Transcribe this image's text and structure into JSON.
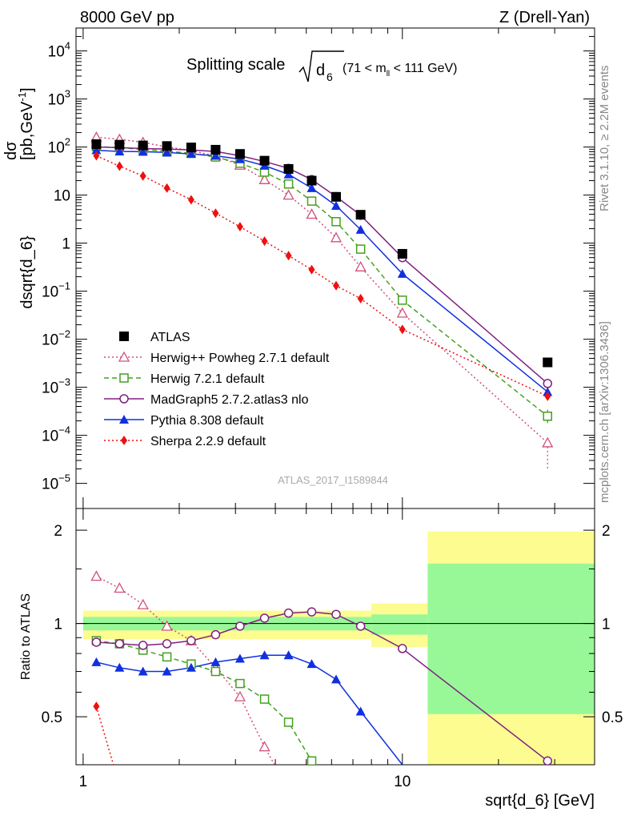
{
  "header": {
    "energy_label": "8000 GeV pp",
    "process_label": "Z (Drell-Yan)"
  },
  "side_labels": {
    "rivet": "Rivet 3.1.10, ≥ 2.2M events",
    "mcplots": "mcplots.cern.ch [arXiv:1306.3436]"
  },
  "analysis_id": "ATLAS_2017_I1589844",
  "chart_data": [
    {
      "type": "line",
      "panel": "main",
      "title": "Splitting scale √d6 (71 < m_ll < 111 GeV)",
      "title_parts": {
        "text": "Splitting scale",
        "sub": "6",
        "symbol": "d",
        "range": "(71 < m",
        "range_sub": "ll",
        "range_end": " < 111 GeV)"
      },
      "xlabel": "sqrt{d_6} [GeV]",
      "ylabel": "dσ/dsqrt{d_6} [pb,GeV⁻¹]",
      "ylabel_parts": {
        "num": "dσ",
        "den": "dsqrt{d_6}",
        "unit": "[pb,GeV",
        "unit_sup": "-1",
        "unit_end": "]"
      },
      "x_scale": "log",
      "y_scale": "log",
      "xlim": [
        0.95,
        40
      ],
      "ylim": [
        3e-06,
        30000
      ],
      "x_ticks": [
        {
          "value": 1,
          "label": "1"
        },
        {
          "value": 10,
          "label": "10"
        }
      ],
      "y_ticks": [
        {
          "value": 10000,
          "base": "10",
          "exp": "4"
        },
        {
          "value": 1000,
          "base": "10",
          "exp": "3"
        },
        {
          "value": 100,
          "base": "10",
          "exp": "2"
        },
        {
          "value": 10,
          "base": "10",
          "exp": ""
        },
        {
          "value": 1,
          "base": "1",
          "exp": ""
        },
        {
          "value": 0.1,
          "base": "10",
          "exp": "−1"
        },
        {
          "value": 0.01,
          "base": "10",
          "exp": "−2"
        },
        {
          "value": 0.001,
          "base": "10",
          "exp": "−3"
        },
        {
          "value": 0.0001,
          "base": "10",
          "exp": "−4"
        },
        {
          "value": 1e-05,
          "base": "10",
          "exp": "−5"
        }
      ],
      "legend_position": "bottom-left",
      "series": [
        {
          "name": "ATLAS",
          "style": "data",
          "color": "#000000",
          "marker": "square-filled",
          "x": [
            1.1,
            1.3,
            1.54,
            1.83,
            2.18,
            2.6,
            3.1,
            3.7,
            4.4,
            5.2,
            6.2,
            7.4,
            10.0,
            28.5
          ],
          "y": [
            115,
            112,
            108,
            105,
            98,
            88,
            72,
            52,
            35,
            20,
            9.2,
            3.9,
            0.6,
            0.0033
          ]
        },
        {
          "name": "Herwig++ Powheg 2.7.1 default",
          "style": "dotted",
          "color": "#d0507a",
          "marker": "triangle-open",
          "x": [
            1.1,
            1.3,
            1.54,
            1.83,
            2.18,
            2.6,
            3.1,
            3.7,
            4.4,
            5.2,
            6.2,
            7.4,
            10.0,
            28.5
          ],
          "y": [
            160,
            145,
            125,
            100,
            85,
            65,
            42,
            21,
            10,
            4.0,
            1.3,
            0.32,
            0.035,
            7e-05
          ]
        },
        {
          "name": "Herwig 7.2.1 default",
          "style": "dashed",
          "color": "#44a020",
          "marker": "square-open",
          "x": [
            1.1,
            1.3,
            1.54,
            1.83,
            2.18,
            2.6,
            3.1,
            3.7,
            4.4,
            5.2,
            6.2,
            7.4,
            10.0,
            28.5
          ],
          "y": [
            102,
            97,
            89,
            82,
            74,
            62,
            46,
            30,
            17,
            7.5,
            2.8,
            0.75,
            0.065,
            0.00025
          ]
        },
        {
          "name": "MadGraph5 2.7.2.atlas3 nlo",
          "style": "solid",
          "color": "#802080",
          "marker": "circle-open",
          "x": [
            1.1,
            1.3,
            1.54,
            1.83,
            2.18,
            2.6,
            3.1,
            3.7,
            4.4,
            5.2,
            6.2,
            7.4,
            10.0,
            28.5
          ],
          "y": [
            100,
            97,
            93,
            91,
            87,
            81,
            66,
            50,
            36,
            21,
            9.3,
            3.8,
            0.5,
            0.0012
          ]
        },
        {
          "name": "Pythia 8.308 default",
          "style": "solid",
          "color": "#1030e0",
          "marker": "triangle-filled",
          "x": [
            1.1,
            1.3,
            1.54,
            1.83,
            2.18,
            2.6,
            3.1,
            3.7,
            4.4,
            5.2,
            6.2,
            7.4,
            10.0,
            28.5
          ],
          "y": [
            86,
            81,
            80,
            77,
            72,
            66,
            56,
            41,
            27,
            14,
            6.0,
            1.9,
            0.23,
            0.0008
          ]
        },
        {
          "name": "Sherpa 2.2.9 default",
          "style": "dotted",
          "color": "#ee1010",
          "marker": "diamond-filled",
          "x": [
            1.1,
            1.3,
            1.54,
            1.83,
            2.18,
            2.6,
            3.1,
            3.7,
            4.4,
            5.2,
            6.2,
            7.4,
            10.0,
            28.5
          ],
          "y": [
            66,
            40,
            25,
            14,
            8,
            4.2,
            2.2,
            1.1,
            0.55,
            0.28,
            0.13,
            0.07,
            0.016,
            0.00065
          ]
        }
      ]
    },
    {
      "type": "line",
      "panel": "ratio",
      "ylabel": "Ratio to ATLAS",
      "xlabel": "sqrt{d_6} [GeV]",
      "x_scale": "log",
      "y_scale": "log",
      "xlim": [
        0.95,
        40
      ],
      "ylim": [
        0.35,
        2.35
      ],
      "y_ticks": [
        {
          "value": 0.5,
          "label": "0.5"
        },
        {
          "value": 1,
          "label": "1"
        },
        {
          "value": 2,
          "label": "2"
        }
      ],
      "x_ticks": [
        {
          "value": 1,
          "label": "1"
        },
        {
          "value": 10,
          "label": "10"
        }
      ],
      "uncertainty_bins": [
        {
          "x_low": 1.0,
          "x_high": 8.0,
          "stat_low": 0.95,
          "stat_high": 1.05,
          "total_low": 0.89,
          "total_high": 1.1
        },
        {
          "x_low": 8.0,
          "x_high": 12.0,
          "stat_low": 0.92,
          "stat_high": 1.07,
          "total_low": 0.84,
          "total_high": 1.16
        },
        {
          "x_low": 12.0,
          "x_high": 40.0,
          "stat_low": 0.51,
          "stat_high": 1.56,
          "total_low": 0.3,
          "total_high": 1.98
        }
      ],
      "band_colors": {
        "stat": "#98f898",
        "total": "#fcfc90"
      },
      "series": [
        {
          "name": "Herwig++ Powheg 2.7.1 default",
          "color": "#d0507a",
          "style": "dotted",
          "marker": "triangle-open",
          "x": [
            1.1,
            1.3,
            1.54,
            1.83,
            2.18,
            2.6,
            3.1,
            3.7,
            4.4
          ],
          "y": [
            1.42,
            1.3,
            1.15,
            0.98,
            0.88,
            0.72,
            0.58,
            0.4,
            0.29
          ]
        },
        {
          "name": "Herwig 7.2.1 default",
          "color": "#44a020",
          "style": "dashed",
          "marker": "square-open",
          "x": [
            1.1,
            1.3,
            1.54,
            1.83,
            2.18,
            2.6,
            3.1,
            3.7,
            4.4,
            5.2
          ],
          "y": [
            0.88,
            0.86,
            0.82,
            0.78,
            0.74,
            0.7,
            0.64,
            0.57,
            0.48,
            0.36
          ]
        },
        {
          "name": "MadGraph5 2.7.2.atlas3 nlo",
          "color": "#802080",
          "style": "solid",
          "marker": "circle-open",
          "x": [
            1.1,
            1.3,
            1.54,
            1.83,
            2.18,
            2.6,
            3.1,
            3.7,
            4.4,
            5.2,
            6.2,
            7.4,
            10.0,
            28.5
          ],
          "y": [
            0.87,
            0.86,
            0.85,
            0.86,
            0.88,
            0.92,
            0.98,
            1.04,
            1.08,
            1.09,
            1.07,
            0.98,
            0.83,
            0.36
          ]
        },
        {
          "name": "Pythia 8.308 default",
          "color": "#1030e0",
          "style": "solid",
          "marker": "triangle-filled",
          "x": [
            1.1,
            1.3,
            1.54,
            1.83,
            2.18,
            2.6,
            3.1,
            3.7,
            4.4,
            5.2,
            6.2,
            7.4,
            10.0
          ],
          "y": [
            0.75,
            0.72,
            0.7,
            0.7,
            0.72,
            0.75,
            0.77,
            0.79,
            0.79,
            0.74,
            0.66,
            0.52,
            0.35
          ]
        },
        {
          "name": "Sherpa 2.2.9 default",
          "color": "#ee1010",
          "style": "dotted",
          "marker": "diamond-filled",
          "x": [
            1.1,
            1.3
          ],
          "y": [
            0.54,
            0.3
          ]
        }
      ]
    }
  ]
}
